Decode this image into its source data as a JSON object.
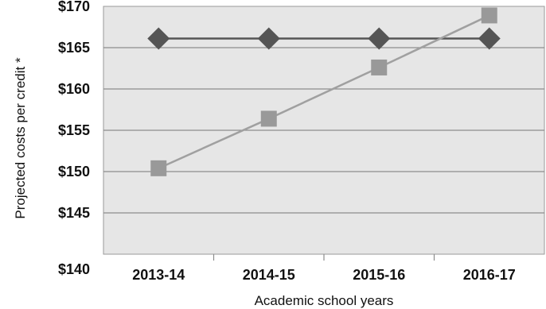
{
  "chart_data": {
    "type": "line",
    "xlabel": "Academic school years",
    "ylabel": "Projected costs per credit *",
    "categories": [
      "2013-14",
      "2014-15",
      "2015-16",
      "2016-17"
    ],
    "ylim": [
      140,
      170
    ],
    "yticks": [
      "$170",
      "$165",
      "$160",
      "$155",
      "$150",
      "$145",
      "$140"
    ],
    "ytick_values": [
      170,
      165,
      160,
      155,
      150,
      145,
      140
    ],
    "grid": true,
    "plot_background": "#e6e6e6",
    "series": [
      {
        "values": [
          166.1,
          166.1,
          166.1,
          166.1
        ],
        "marker": "diamond",
        "color": "#555555",
        "line_color": "#555555"
      },
      {
        "values": [
          150.4,
          156.4,
          162.6,
          168.9
        ],
        "marker": "square",
        "color": "#999999",
        "line_color": "#a0a0a0"
      }
    ]
  }
}
